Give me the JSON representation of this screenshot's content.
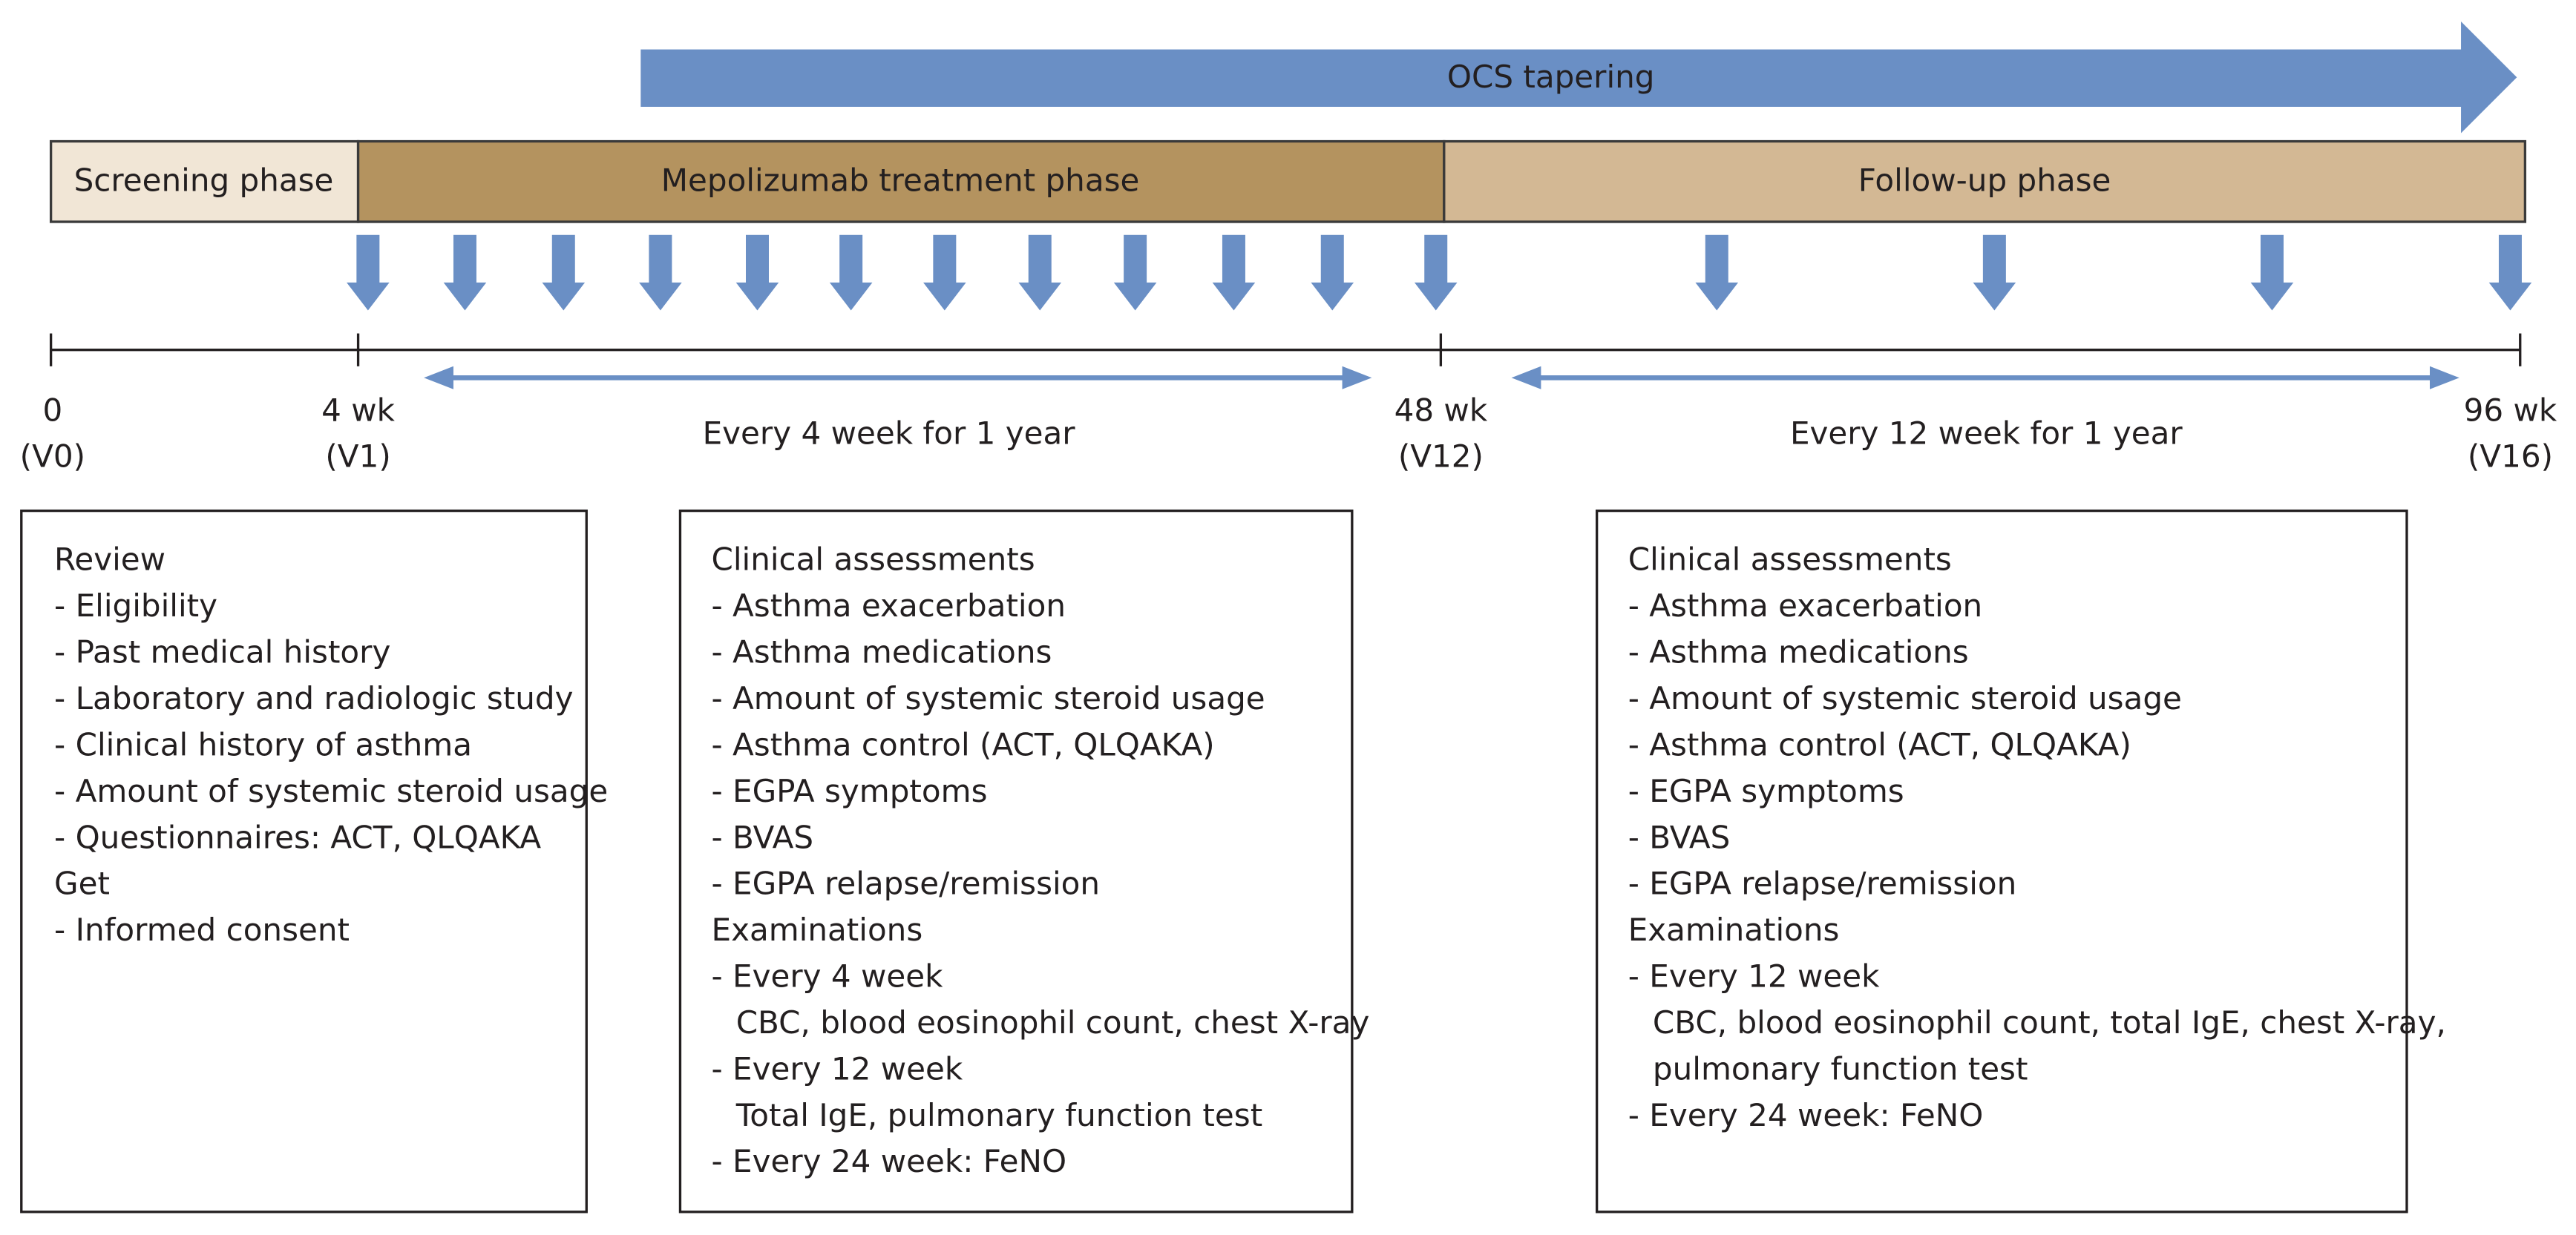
{
  "tapering": "OCS tapering",
  "phases": [
    "Screening phase",
    "Mepolizumab treatment phase",
    "Follow-up phase"
  ],
  "timepoints": [
    {
      "week": "0",
      "visit": "(V0)"
    },
    {
      "week": "4 wk",
      "visit": "(V1)"
    },
    {
      "week": "48 wk",
      "visit": "(V12)"
    },
    {
      "week": "96 wk",
      "visit": "(V16)"
    }
  ],
  "intervals": [
    "Every 4 week for 1 year",
    "Every 12 week for 1 year"
  ],
  "boxes": [
    {
      "sections": [
        {
          "heading": "Review",
          "items": [
            "- Eligibility",
            "- Past medical history",
            "- Laboratory and radiologic study",
            "- Clinical history of asthma",
            "- Amount of systemic steroid usage",
            "- Questionnaires: ACT, QLQAKA"
          ]
        },
        {
          "heading": "Get",
          "items": [
            "- Informed consent"
          ]
        }
      ]
    },
    {
      "sections": [
        {
          "heading": "Clinical assessments",
          "items": [
            "- Asthma exacerbation",
            "- Asthma medications",
            "- Amount of systemic steroid usage",
            "- Asthma control (ACT, QLQAKA)",
            "- EGPA symptoms",
            "- BVAS",
            "- EGPA relapse/remission"
          ]
        },
        {
          "heading": "Examinations",
          "items": [
            {
              "label": "- Every 4 week",
              "details": [
                "CBC, blood eosinophil count, chest X-ray"
              ]
            },
            {
              "label": "- Every 12 week",
              "details": [
                "Total IgE, pulmonary function test"
              ]
            },
            "- Every 24 week: FeNO"
          ]
        }
      ]
    },
    {
      "sections": [
        {
          "heading": "Clinical assessments",
          "items": [
            "- Asthma exacerbation",
            "- Asthma medications",
            "- Amount of systemic steroid usage",
            "- Asthma control (ACT, QLQAKA)",
            "- EGPA symptoms",
            "- BVAS",
            "- EGPA relapse/remission"
          ]
        },
        {
          "heading": "Examinations",
          "items": [
            {
              "label": "- Every 12 week",
              "details": [
                "CBC, blood eosinophil count, total IgE, chest X-ray,",
                "pulmonary function test"
              ]
            },
            "- Every 24 week: FeNO"
          ]
        }
      ]
    }
  ]
}
